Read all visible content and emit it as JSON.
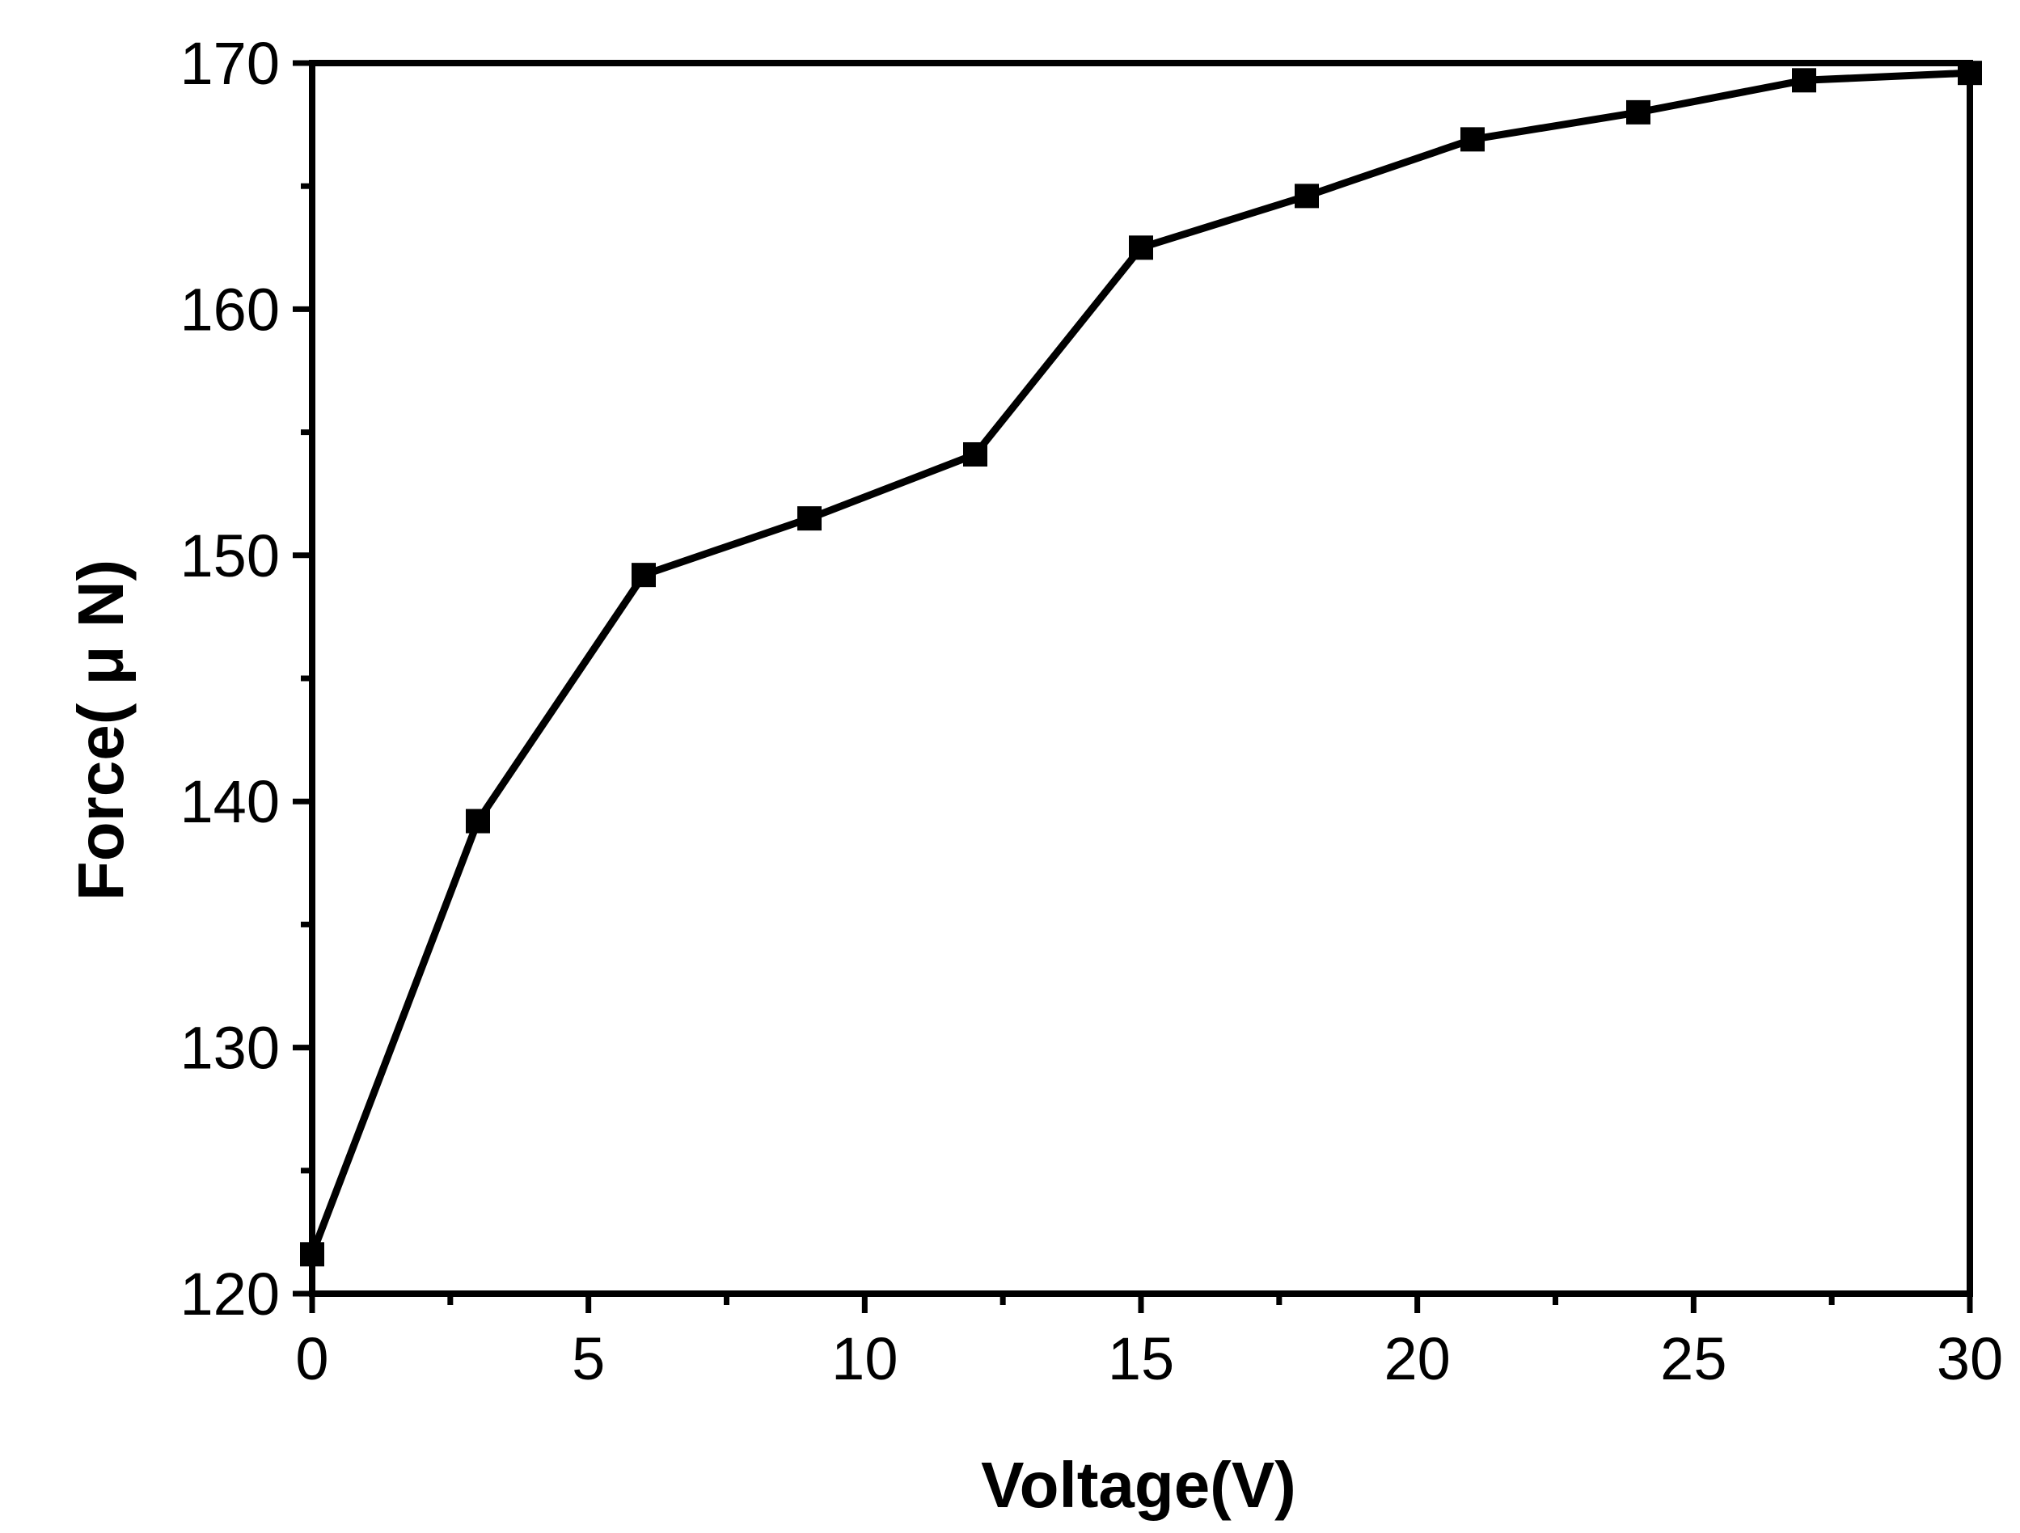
{
  "chart_data": {
    "type": "line",
    "title": "",
    "xlabel": "Voltage(V)",
    "ylabel": "Force( μ N)",
    "xlim": [
      0,
      30
    ],
    "ylim": [
      120,
      170
    ],
    "x_ticks": [
      "0",
      "5",
      "10",
      "15",
      "20",
      "25",
      "30"
    ],
    "y_ticks": [
      "120",
      "130",
      "140",
      "150",
      "160",
      "170"
    ],
    "grid": false,
    "legend": "none",
    "marker": "square",
    "color": "#000000",
    "series": [
      {
        "x": [
          0,
          3,
          6,
          9,
          12,
          15,
          18,
          21,
          24,
          27,
          30
        ],
        "values": [
          121.6,
          139.2,
          149.2,
          151.5,
          154.1,
          162.5,
          164.6,
          166.9,
          168.0,
          169.3,
          169.6
        ]
      }
    ]
  }
}
